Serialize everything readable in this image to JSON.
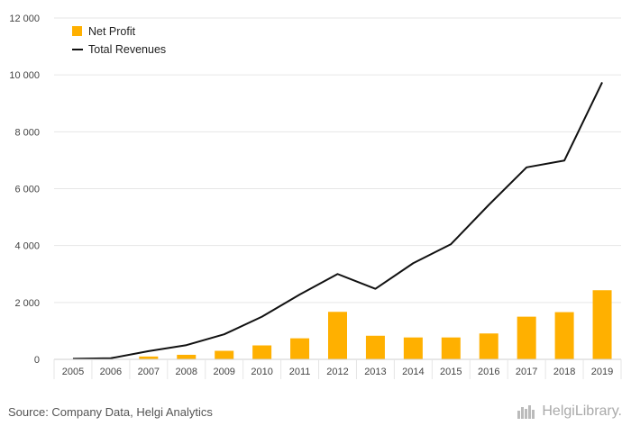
{
  "colors": {
    "bar": "#FFB000",
    "line": "#111111",
    "grid": "#e6e6e6",
    "axis": "#cfcfcf"
  },
  "footer": {
    "source": "Source: Company Data, Helgi Analytics",
    "brand": "HelgiLibrary."
  },
  "chart_data": {
    "type": "bar",
    "categories": [
      "2005",
      "2006",
      "2007",
      "2008",
      "2009",
      "2010",
      "2011",
      "2012",
      "2013",
      "2014",
      "2015",
      "2016",
      "2017",
      "2018",
      "2019"
    ],
    "series": [
      {
        "name": "Net Profit",
        "type": "bar",
        "values": [
          5,
          15,
          100,
          160,
          300,
          490,
          740,
          1670,
          830,
          770,
          770,
          910,
          1500,
          1660,
          2430
        ]
      },
      {
        "name": "Total Revenues",
        "type": "line",
        "values": [
          20,
          40,
          290,
          500,
          880,
          1500,
          2280,
          3000,
          2480,
          3380,
          4050,
          5430,
          6750,
          6990,
          9740
        ]
      }
    ],
    "ylim": [
      0,
      12000
    ],
    "yticks": [
      0,
      2000,
      4000,
      6000,
      8000,
      10000,
      12000
    ],
    "ytick_labels": [
      "0",
      "2 000",
      "4 000",
      "6 000",
      "8 000",
      "10 000",
      "12 000"
    ],
    "grid": true,
    "legend": "top-left",
    "title": "",
    "xlabel": "",
    "ylabel": ""
  }
}
